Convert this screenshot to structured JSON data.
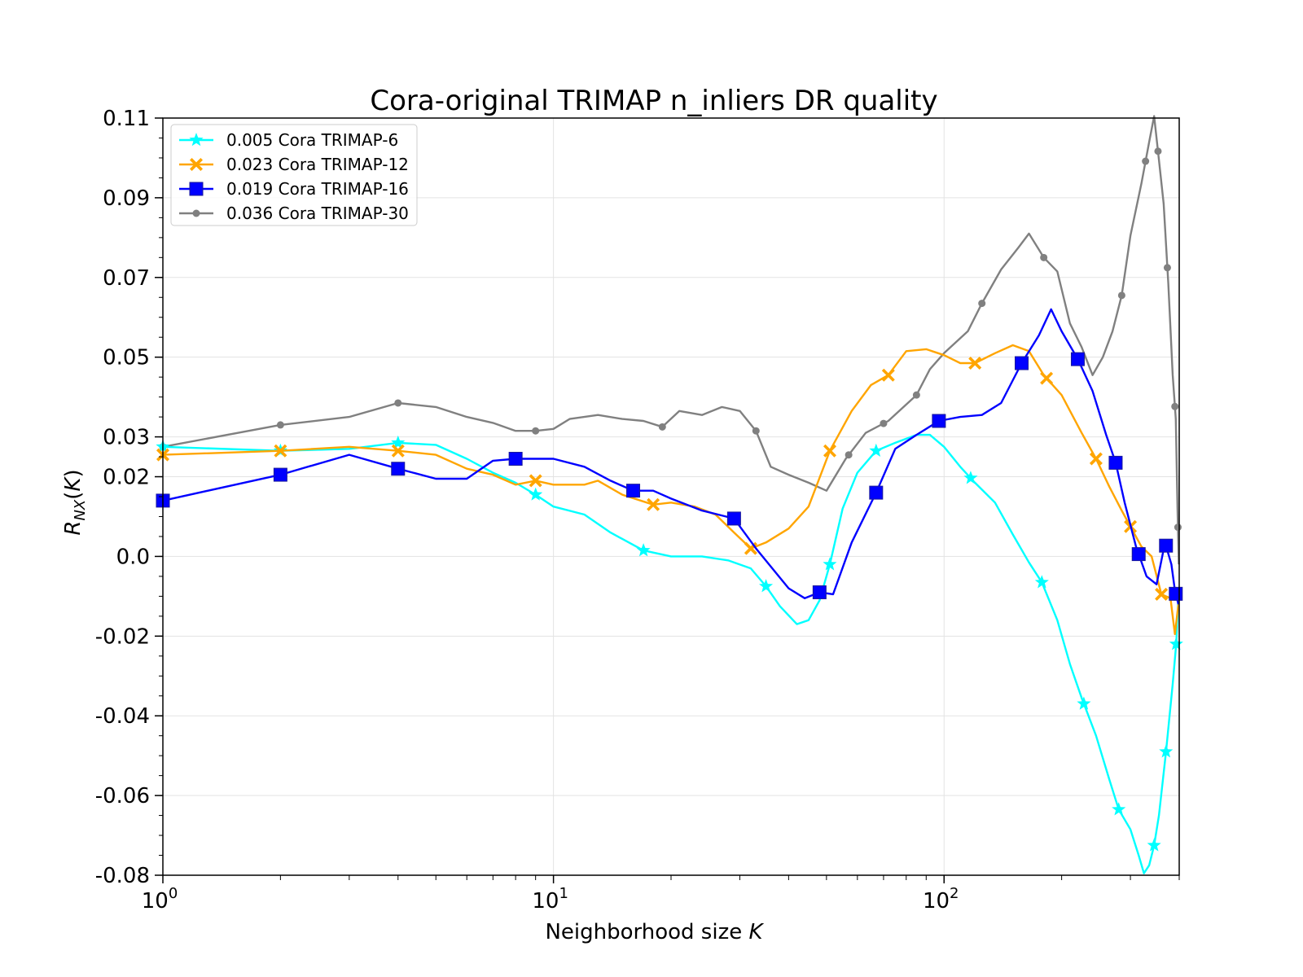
{
  "chart_data": {
    "type": "line",
    "title": "Cora-original TRIMAP n_inliers DR quality",
    "xlabel": "Neighborhood size",
    "xlabel_var": "K",
    "ylabel": "R_NX(K)",
    "xscale": "log",
    "xlim": [
      1,
      400
    ],
    "ylim": [
      -0.08,
      0.11
    ],
    "x_ticks": [
      1,
      10,
      100
    ],
    "x_tick_labels": [
      {
        "base": "10",
        "exp": "0"
      },
      {
        "base": "10",
        "exp": "1"
      },
      {
        "base": "10",
        "exp": "2"
      }
    ],
    "y_ticks": [
      0.11,
      0.09,
      0.07,
      0.05,
      0.03,
      0.02,
      0.0,
      -0.02,
      -0.04,
      -0.06,
      -0.08
    ],
    "y_tick_labels": [
      "0.11",
      "0.09",
      "0.07",
      "0.05",
      "0.03",
      "0.02",
      "0.0",
      "-0.02",
      "-0.04",
      "-0.06",
      "-0.08"
    ],
    "grid": true,
    "legend_position": "top-left",
    "series": [
      {
        "name": "0.005 Cora TRIMAP-6",
        "color": "#00ffff",
        "marker": "star",
        "points": [
          [
            1,
            0.0275
          ],
          [
            2,
            0.0265
          ],
          [
            3,
            0.027
          ],
          [
            4,
            0.0285
          ],
          [
            5,
            0.028
          ],
          [
            6,
            0.0245
          ],
          [
            7,
            0.021
          ],
          [
            8,
            0.0185
          ],
          [
            9,
            0.0155
          ],
          [
            10,
            0.0125
          ],
          [
            12,
            0.0105
          ],
          [
            14,
            0.006
          ],
          [
            17,
            0.0015
          ],
          [
            20,
            0.0
          ],
          [
            24,
            0.0
          ],
          [
            28,
            -0.001
          ],
          [
            32,
            -0.003
          ],
          [
            35,
            -0.0075
          ],
          [
            38,
            -0.0125
          ],
          [
            42,
            -0.017
          ],
          [
            45,
            -0.016
          ],
          [
            48,
            -0.011
          ],
          [
            51,
            -0.002
          ],
          [
            55,
            0.012
          ],
          [
            60,
            0.021
          ],
          [
            67,
            0.0265
          ],
          [
            75,
            0.0285
          ],
          [
            85,
            0.0305
          ],
          [
            92,
            0.0305
          ],
          [
            100,
            0.0275
          ],
          [
            110,
            0.0225
          ],
          [
            120,
            0.0185
          ],
          [
            135,
            0.0135
          ],
          [
            150,
            0.0055
          ],
          [
            165,
            -0.0015
          ],
          [
            178,
            -0.0065
          ],
          [
            195,
            -0.016
          ],
          [
            210,
            -0.027
          ],
          [
            225,
            -0.0355
          ],
          [
            245,
            -0.045
          ],
          [
            265,
            -0.056
          ],
          [
            280,
            -0.0635
          ],
          [
            300,
            -0.0685
          ],
          [
            315,
            -0.075
          ],
          [
            325,
            -0.0795
          ],
          [
            335,
            -0.0775
          ],
          [
            345,
            -0.0725
          ],
          [
            355,
            -0.065
          ],
          [
            370,
            -0.049
          ],
          [
            385,
            -0.032
          ],
          [
            393,
            -0.022
          ],
          [
            398,
            -0.01
          ]
        ],
        "marker_x": [
          1,
          2,
          4,
          9,
          17,
          35,
          51,
          67,
          117,
          178,
          228,
          280,
          345,
          370,
          393
        ]
      },
      {
        "name": "0.023 Cora TRIMAP-12",
        "color": "#ffa500",
        "marker": "x",
        "points": [
          [
            1,
            0.0255
          ],
          [
            2,
            0.0265
          ],
          [
            3,
            0.0275
          ],
          [
            4,
            0.0265
          ],
          [
            5,
            0.0255
          ],
          [
            6,
            0.022
          ],
          [
            7,
            0.0205
          ],
          [
            8,
            0.018
          ],
          [
            9,
            0.019
          ],
          [
            10,
            0.018
          ],
          [
            12,
            0.018
          ],
          [
            13,
            0.019
          ],
          [
            15,
            0.0155
          ],
          [
            18,
            0.013
          ],
          [
            20,
            0.0135
          ],
          [
            23,
            0.0125
          ],
          [
            26,
            0.0105
          ],
          [
            29,
            0.006
          ],
          [
            32,
            0.002
          ],
          [
            35,
            0.0035
          ],
          [
            40,
            0.007
          ],
          [
            45,
            0.0125
          ],
          [
            51,
            0.0265
          ],
          [
            58,
            0.0365
          ],
          [
            65,
            0.043
          ],
          [
            72,
            0.0455
          ],
          [
            80,
            0.0515
          ],
          [
            90,
            0.052
          ],
          [
            100,
            0.0505
          ],
          [
            110,
            0.0485
          ],
          [
            120,
            0.0485
          ],
          [
            135,
            0.051
          ],
          [
            150,
            0.053
          ],
          [
            165,
            0.0515
          ],
          [
            180,
            0.0455
          ],
          [
            200,
            0.0405
          ],
          [
            225,
            0.031
          ],
          [
            245,
            0.0245
          ],
          [
            265,
            0.0175
          ],
          [
            285,
            0.0115
          ],
          [
            300,
            0.0075
          ],
          [
            320,
            0.0025
          ],
          [
            340,
            0.0
          ],
          [
            360,
            -0.0095
          ],
          [
            380,
            -0.0105
          ],
          [
            390,
            -0.0195
          ],
          [
            398,
            -0.012
          ]
        ],
        "marker_x": [
          1,
          2,
          4,
          9,
          18,
          32,
          51,
          72,
          120,
          183,
          245,
          300,
          360
        ]
      },
      {
        "name": "0.019 Cora TRIMAP-16",
        "color": "#0000ff",
        "marker": "square",
        "points": [
          [
            1,
            0.014
          ],
          [
            2,
            0.0205
          ],
          [
            3,
            0.0255
          ],
          [
            4,
            0.022
          ],
          [
            5,
            0.0195
          ],
          [
            6,
            0.0195
          ],
          [
            7,
            0.024
          ],
          [
            8,
            0.0245
          ],
          [
            10,
            0.0245
          ],
          [
            12,
            0.0225
          ],
          [
            14,
            0.019
          ],
          [
            16,
            0.0165
          ],
          [
            18,
            0.0165
          ],
          [
            20,
            0.0145
          ],
          [
            24,
            0.0115
          ],
          [
            29,
            0.0095
          ],
          [
            33,
            0.002
          ],
          [
            36,
            -0.0025
          ],
          [
            40,
            -0.008
          ],
          [
            44,
            -0.0105
          ],
          [
            48,
            -0.009
          ],
          [
            52,
            -0.0095
          ],
          [
            58,
            0.0035
          ],
          [
            67,
            0.016
          ],
          [
            75,
            0.027
          ],
          [
            85,
            0.0305
          ],
          [
            97,
            0.034
          ],
          [
            110,
            0.035
          ],
          [
            125,
            0.0355
          ],
          [
            140,
            0.0385
          ],
          [
            158,
            0.0485
          ],
          [
            175,
            0.0555
          ],
          [
            188,
            0.062
          ],
          [
            200,
            0.0565
          ],
          [
            220,
            0.0495
          ],
          [
            240,
            0.0415
          ],
          [
            260,
            0.0305
          ],
          [
            275,
            0.0235
          ],
          [
            290,
            0.0135
          ],
          [
            310,
            0.0025
          ],
          [
            330,
            -0.005
          ],
          [
            350,
            -0.007
          ],
          [
            368,
            0.0035
          ],
          [
            382,
            -0.002
          ],
          [
            390,
            -0.0085
          ],
          [
            398,
            -0.012
          ]
        ],
        "marker_x": [
          1,
          2,
          4,
          8,
          16,
          29,
          48,
          67,
          97,
          158,
          220,
          275,
          315,
          370,
          392
        ]
      },
      {
        "name": "0.036 Cora TRIMAP-30",
        "color": "#808080",
        "marker": "circle",
        "points": [
          [
            1,
            0.0275
          ],
          [
            2,
            0.033
          ],
          [
            3,
            0.035
          ],
          [
            4,
            0.0385
          ],
          [
            5,
            0.0375
          ],
          [
            6,
            0.035
          ],
          [
            7,
            0.0335
          ],
          [
            8,
            0.0315
          ],
          [
            9,
            0.0315
          ],
          [
            10,
            0.032
          ],
          [
            11,
            0.0345
          ],
          [
            13,
            0.0355
          ],
          [
            15,
            0.0345
          ],
          [
            17,
            0.034
          ],
          [
            19,
            0.0325
          ],
          [
            21,
            0.0365
          ],
          [
            24,
            0.0355
          ],
          [
            27,
            0.0375
          ],
          [
            30,
            0.0365
          ],
          [
            33,
            0.0315
          ],
          [
            36,
            0.0225
          ],
          [
            40,
            0.0205
          ],
          [
            45,
            0.0185
          ],
          [
            50,
            0.0165
          ],
          [
            56,
            0.0245
          ],
          [
            63,
            0.031
          ],
          [
            72,
            0.034
          ],
          [
            85,
            0.0405
          ],
          [
            92,
            0.047
          ],
          [
            100,
            0.051
          ],
          [
            115,
            0.0565
          ],
          [
            125,
            0.0635
          ],
          [
            140,
            0.072
          ],
          [
            155,
            0.0775
          ],
          [
            165,
            0.081
          ],
          [
            180,
            0.075
          ],
          [
            195,
            0.0715
          ],
          [
            210,
            0.0585
          ],
          [
            225,
            0.0525
          ],
          [
            240,
            0.0455
          ],
          [
            255,
            0.05
          ],
          [
            270,
            0.0565
          ],
          [
            285,
            0.0655
          ],
          [
            300,
            0.0805
          ],
          [
            320,
            0.0935
          ],
          [
            335,
            0.104
          ],
          [
            345,
            0.1105
          ],
          [
            355,
            0.0995
          ],
          [
            365,
            0.0885
          ],
          [
            375,
            0.0685
          ],
          [
            385,
            0.0455
          ],
          [
            392,
            0.0345
          ],
          [
            396,
            0.012
          ],
          [
            399,
            -0.002
          ]
        ],
        "marker_x": [
          1,
          2,
          4,
          9,
          19,
          33,
          57,
          70,
          85,
          125,
          180,
          285,
          328,
          353,
          373,
          390,
          397
        ]
      }
    ]
  }
}
